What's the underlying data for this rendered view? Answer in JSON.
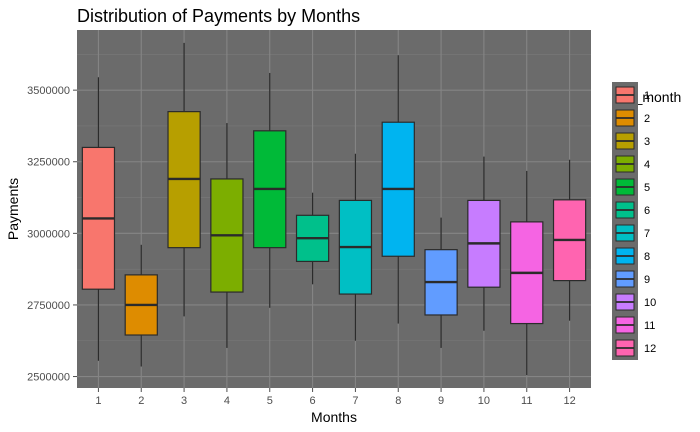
{
  "chart_data": {
    "type": "boxplot",
    "title": "Distribution of Payments by Months",
    "xlabel": "Months",
    "ylabel": "Payments",
    "categories": [
      "1",
      "2",
      "3",
      "4",
      "5",
      "6",
      "7",
      "8",
      "9",
      "10",
      "11",
      "12"
    ],
    "ylim": [
      2460000,
      3710000
    ],
    "yticks": [
      2500000,
      2750000,
      3000000,
      3250000,
      3500000
    ],
    "ytick_labels": [
      "2500000",
      "2750000",
      "3000000",
      "3250000",
      "3500000"
    ],
    "grid": true,
    "legend": {
      "title": "dos_month",
      "position": "right",
      "labels": [
        "1",
        "2",
        "3",
        "4",
        "5",
        "6",
        "7",
        "8",
        "9",
        "10",
        "11",
        "12"
      ]
    },
    "colors": [
      "#F8766D",
      "#DE8C00",
      "#B79F00",
      "#7CAE00",
      "#00BA38",
      "#00C08B",
      "#00BFC4",
      "#00B4F0",
      "#619CFF",
      "#C77CFF",
      "#F564E3",
      "#FF64B0"
    ],
    "panel_background": "#6b6b6b",
    "series": [
      {
        "category": "1",
        "min": 2555000,
        "q1": 2805000,
        "median": 3052000,
        "q3": 3300000,
        "max": 3545000
      },
      {
        "category": "2",
        "min": 2535000,
        "q1": 2645000,
        "median": 2750000,
        "q3": 2855000,
        "max": 2960000
      },
      {
        "category": "3",
        "min": 2710000,
        "q1": 2950000,
        "median": 3190000,
        "q3": 3425000,
        "max": 3665000
      },
      {
        "category": "4",
        "min": 2600000,
        "q1": 2795000,
        "median": 2993000,
        "q3": 3190000,
        "max": 3385000
      },
      {
        "category": "5",
        "min": 2740000,
        "q1": 2950000,
        "median": 3155000,
        "q3": 3358000,
        "max": 3560000
      },
      {
        "category": "6",
        "min": 2822000,
        "q1": 2902000,
        "median": 2983000,
        "q3": 3063000,
        "max": 3142000
      },
      {
        "category": "7",
        "min": 2625000,
        "q1": 2788000,
        "median": 2952000,
        "q3": 3115000,
        "max": 3278000
      },
      {
        "category": "8",
        "min": 2685000,
        "q1": 2920000,
        "median": 3155000,
        "q3": 3388000,
        "max": 3622000
      },
      {
        "category": "9",
        "min": 2600000,
        "q1": 2715000,
        "median": 2830000,
        "q3": 2943000,
        "max": 3055000
      },
      {
        "category": "10",
        "min": 2660000,
        "q1": 2812000,
        "median": 2965000,
        "q3": 3115000,
        "max": 3268000
      },
      {
        "category": "11",
        "min": 2505000,
        "q1": 2685000,
        "median": 2862000,
        "q3": 3040000,
        "max": 3218000
      },
      {
        "category": "12",
        "min": 2695000,
        "q1": 2835000,
        "median": 2977000,
        "q3": 3117000,
        "max": 3257000
      }
    ]
  }
}
